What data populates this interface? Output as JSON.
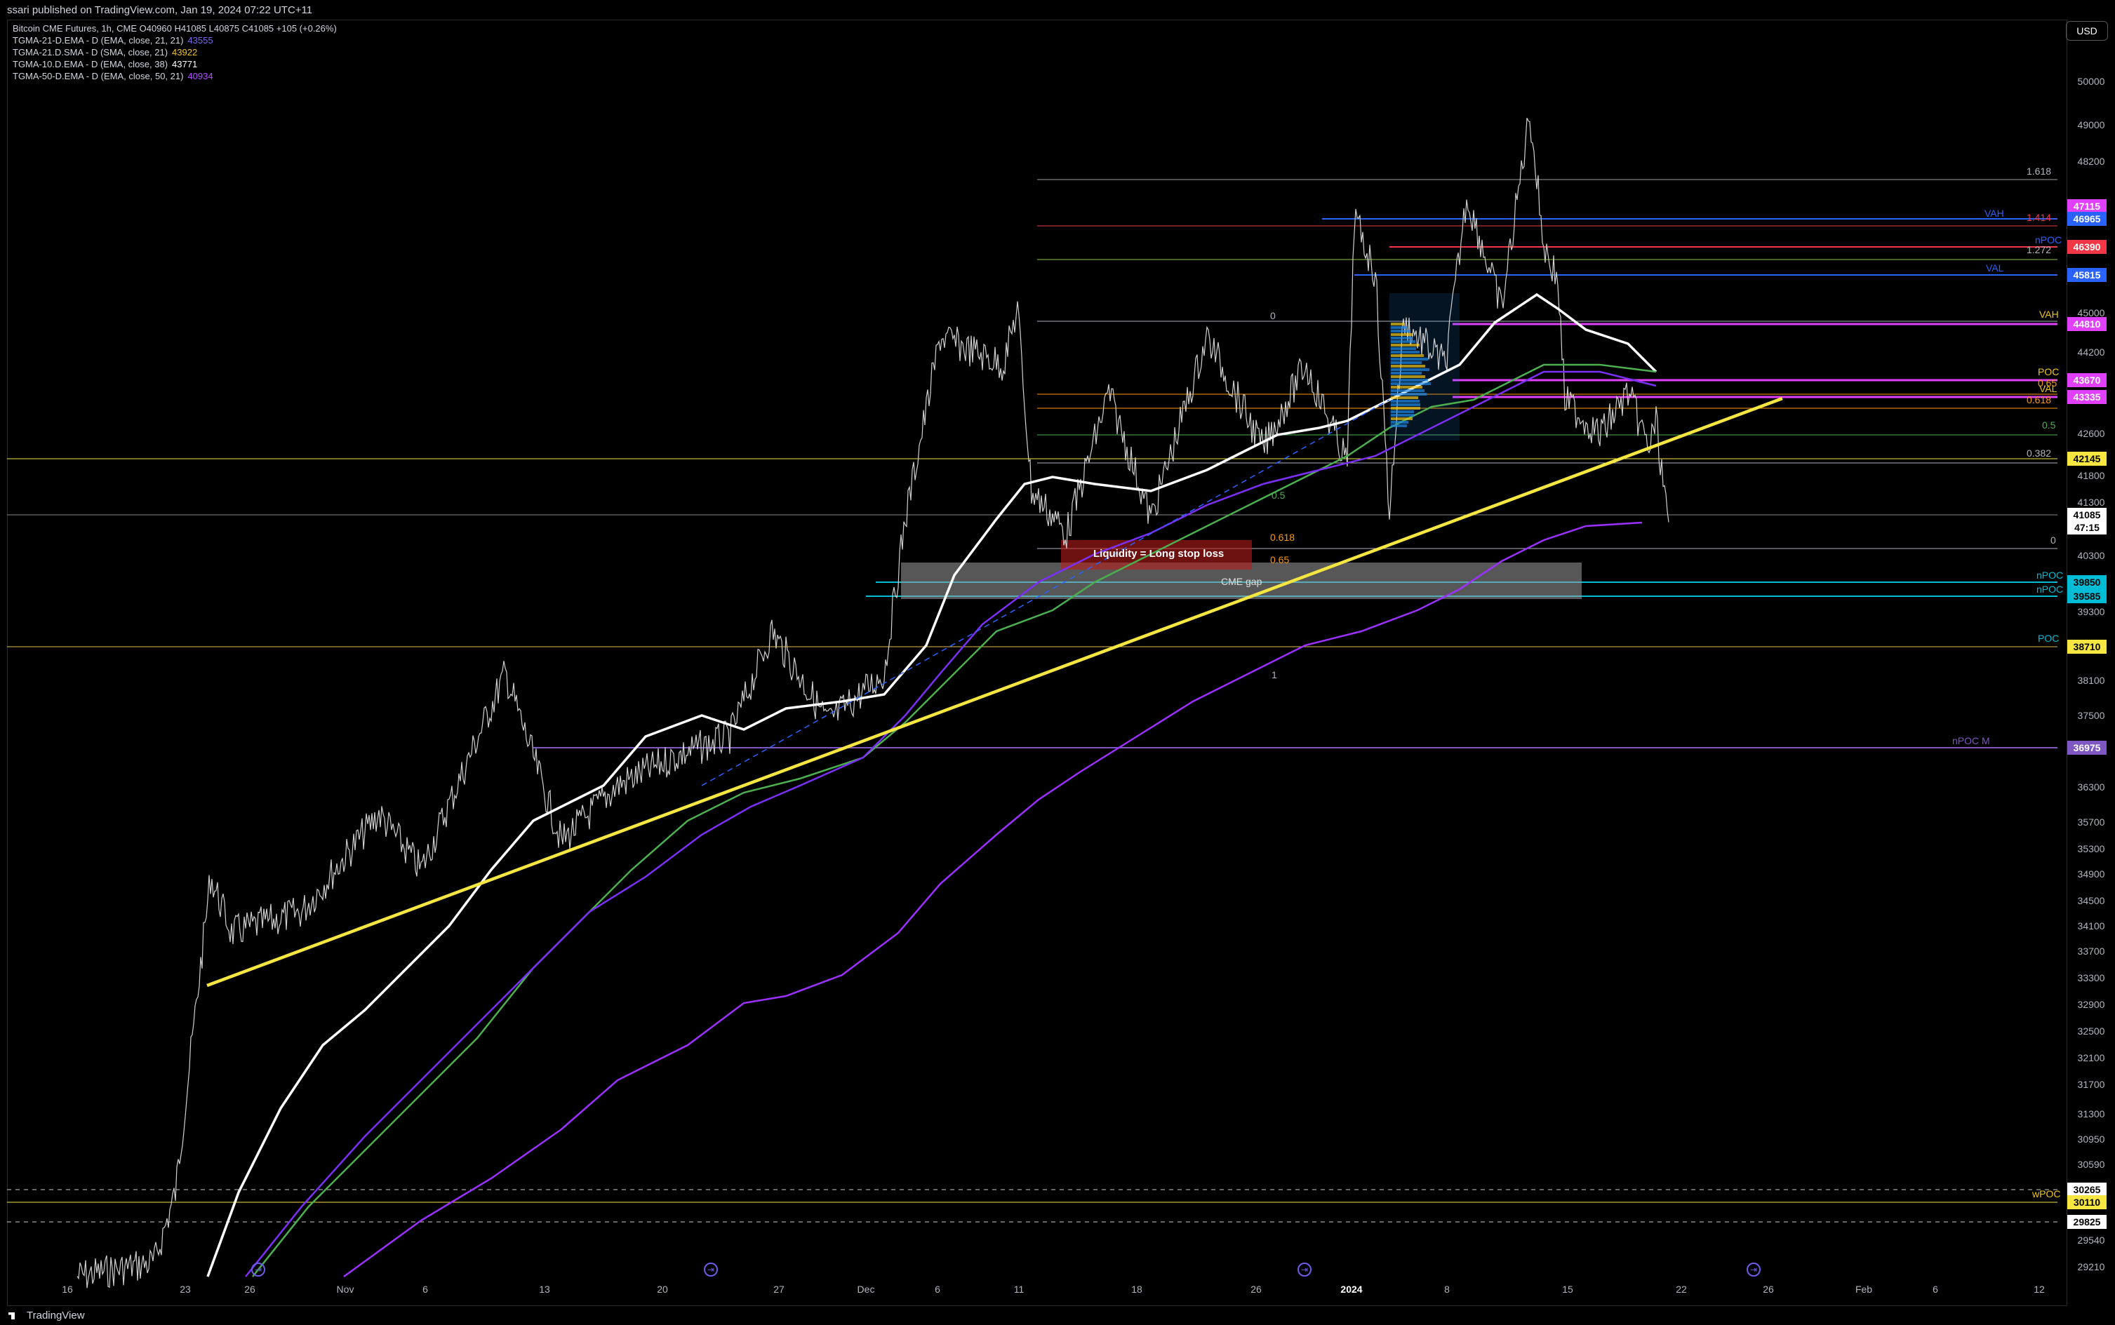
{
  "header": {
    "publish_text": "ssari published on TradingView.com, Jan 19, 2024 07:22 UTC+11"
  },
  "legend": {
    "title": "Bitcoin CME Futures, 1h, CME  O40960  H41085  L40875  C41085  +105 (+0.26%)",
    "rows": [
      {
        "label": "TGMA-21-D.EMA - D (EMA, close, 21, 21)",
        "value": "43555",
        "color": "#7b68ee"
      },
      {
        "label": "TGMA-21.D.SMA - D (SMA, close, 21)",
        "value": "43922",
        "color": "#f0c419"
      },
      {
        "label": "TGMA-10.D.EMA - D (EMA, close, 38)",
        "value": "43771",
        "color": "#ffffff"
      },
      {
        "label": "TGMA-50-D.EMA - D (EMA, close, 50, 21)",
        "value": "40934",
        "color": "#b04cff"
      }
    ]
  },
  "currency_button": "USD",
  "y_ticks": [
    "50000",
    "49000",
    "48200",
    "45000",
    "44200",
    "42600",
    "41800",
    "41300",
    "40300",
    "39300",
    "38100",
    "37500",
    "36300",
    "35700",
    "35300",
    "34900",
    "34500",
    "34100",
    "33700",
    "33300",
    "32900",
    "32500",
    "32100",
    "31700",
    "31300",
    "30950",
    "30590",
    "29540",
    "29210"
  ],
  "price_badges": [
    {
      "text": "47115",
      "bg": "#e040fb",
      "fg": "#ffffff"
    },
    {
      "text": "46965",
      "bg": "#2962ff",
      "fg": "#ffffff"
    },
    {
      "text": "46390",
      "bg": "#f23645",
      "fg": "#ffffff"
    },
    {
      "text": "45815",
      "bg": "#2962ff",
      "fg": "#ffffff"
    },
    {
      "text": "44810",
      "bg": "#e040fb",
      "fg": "#ffffff"
    },
    {
      "text": "43670",
      "bg": "#e040fb",
      "fg": "#ffffff"
    },
    {
      "text": "43335",
      "bg": "#e040fb",
      "fg": "#ffffff"
    },
    {
      "text": "42145",
      "bg": "#f5e642",
      "fg": "#000000"
    },
    {
      "text": "41085",
      "bg": "#ffffff",
      "fg": "#000000"
    },
    {
      "text": "47:15",
      "bg": "#ffffff",
      "fg": "#000000"
    },
    {
      "text": "39850",
      "bg": "#00bcd4",
      "fg": "#000000"
    },
    {
      "text": "39585",
      "bg": "#00bcd4",
      "fg": "#000000"
    },
    {
      "text": "38710",
      "bg": "#f5e642",
      "fg": "#000000"
    },
    {
      "text": "36975",
      "bg": "#7e57c2",
      "fg": "#ffffff"
    },
    {
      "text": "30265",
      "bg": "#ffffff",
      "fg": "#000000"
    },
    {
      "text": "30110",
      "bg": "#f5e642",
      "fg": "#000000"
    },
    {
      "text": "29825",
      "bg": "#ffffff",
      "fg": "#000000"
    }
  ],
  "level_labels": [
    {
      "text": "1.618",
      "color": "#b2b5be"
    },
    {
      "text": "1.414",
      "color": "#f23645"
    },
    {
      "text": "VAH",
      "color": "#2962ff"
    },
    {
      "text": "nPOC",
      "color": "#2962ff"
    },
    {
      "text": "1.272",
      "color": "#b2b5be"
    },
    {
      "text": "VAL",
      "color": "#2962ff"
    },
    {
      "text": "VAH",
      "color": "#f0c419"
    },
    {
      "text": "POC",
      "color": "#f0c419"
    },
    {
      "text": "0.65",
      "color": "#ff9800"
    },
    {
      "text": "VAL",
      "color": "#f0c419"
    },
    {
      "text": "0.618",
      "color": "#ff9800"
    },
    {
      "text": "0.5",
      "color": "#4caf50"
    },
    {
      "text": "0.382",
      "color": "#b2b5be"
    },
    {
      "text": "0",
      "color": "#b2b5be"
    },
    {
      "text": "nPOC",
      "color": "#00bcd4"
    },
    {
      "text": "nPOC",
      "color": "#00bcd4"
    },
    {
      "text": "POC",
      "color": "#00bcd4"
    },
    {
      "text": "nPOC M",
      "color": "#7e57c2"
    },
    {
      "text": "wPOC",
      "color": "#f0c419"
    }
  ],
  "fib_labels": [
    {
      "text": "0",
      "color": "#b2b5be"
    },
    {
      "text": "0.5",
      "color": "#4caf50"
    },
    {
      "text": "0.618",
      "color": "#ff9800"
    },
    {
      "text": "0.65",
      "color": "#ff9800"
    },
    {
      "text": "1",
      "color": "#b2b5be"
    }
  ],
  "annotations": {
    "liquidity": "Liquidity = Long stop loss",
    "cme_gap": "CME gap"
  },
  "x_ticks": [
    {
      "text": "16",
      "bold": false
    },
    {
      "text": "23",
      "bold": false
    },
    {
      "text": "26",
      "bold": false
    },
    {
      "text": "Nov",
      "bold": false
    },
    {
      "text": "6",
      "bold": false
    },
    {
      "text": "13",
      "bold": false
    },
    {
      "text": "20",
      "bold": false
    },
    {
      "text": "27",
      "bold": false
    },
    {
      "text": "Dec",
      "bold": false
    },
    {
      "text": "6",
      "bold": false
    },
    {
      "text": "11",
      "bold": false
    },
    {
      "text": "18",
      "bold": false
    },
    {
      "text": "26",
      "bold": false
    },
    {
      "text": "2024",
      "bold": true
    },
    {
      "text": "8",
      "bold": false
    },
    {
      "text": "15",
      "bold": false
    },
    {
      "text": "22",
      "bold": false
    },
    {
      "text": "26",
      "bold": false
    },
    {
      "text": "Feb",
      "bold": false
    },
    {
      "text": "6",
      "bold": false
    },
    {
      "text": "12",
      "bold": false
    }
  ],
  "footer": {
    "brand": "TradingView"
  },
  "colors": {
    "ema21": "#7b2ff7",
    "ema50": "#8a2be2",
    "sma21": "#4caf50",
    "ema10": "#ffffff",
    "trendline": "#f5e642"
  }
}
